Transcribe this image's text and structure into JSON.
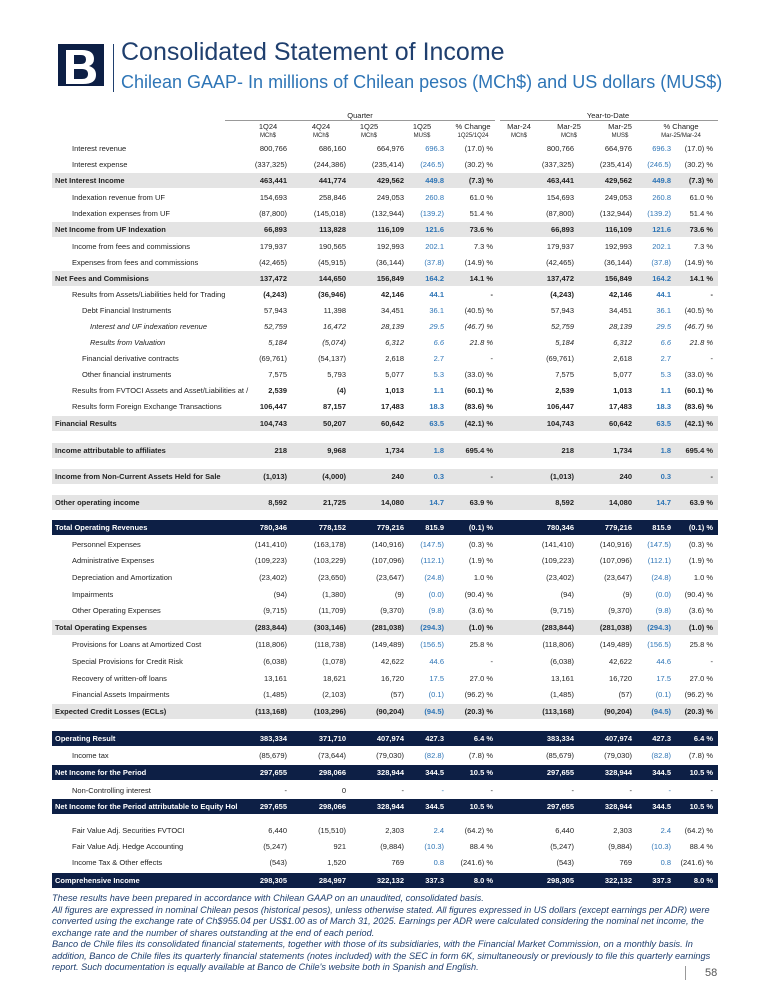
{
  "header": {
    "title": "Consolidated Statement of Income",
    "subtitle": "Chilean GAAP- In millions of Chilean pesos (MCh$) and US dollars (MUS$)"
  },
  "table": {
    "groups": [
      "Quarter",
      "Year-to-Date"
    ],
    "columns": [
      [
        "1Q24",
        "MCh$"
      ],
      [
        "4Q24",
        "MCh$"
      ],
      [
        "1Q25",
        "MCh$"
      ],
      [
        "1Q25",
        "MUS$"
      ],
      [
        "% Change",
        "1Q25/1Q24"
      ],
      [
        "Mar-24",
        "MCh$"
      ],
      [
        "Mar-25",
        "MCh$"
      ],
      [
        "Mar-25",
        "MUS$"
      ],
      [
        "% Change",
        "Mar-25/Mar-24"
      ]
    ],
    "rows": [
      [
        "Interest revenue",
        "800,766",
        "686,160",
        "664,976",
        "696.3",
        "(17.0) %",
        "800,766",
        "664,976",
        "696.3",
        "(17.0) %"
      ],
      [
        "Interest expense",
        "(337,325)",
        "(244,386)",
        "(235,414)",
        "(246.5)",
        "(30.2) %",
        "(337,325)",
        "(235,414)",
        "(246.5)",
        "(30.2) %"
      ],
      [
        "Net Interest Income",
        "463,441",
        "441,774",
        "429,562",
        "449.8",
        "(7.3) %",
        "463,441",
        "429,562",
        "449.8",
        "(7.3) %"
      ],
      [
        "Indexation revenue from UF",
        "154,693",
        "258,846",
        "249,053",
        "260.8",
        "61.0 %",
        "154,693",
        "249,053",
        "260.8",
        "61.0 %"
      ],
      [
        "Indexation expenses from UF",
        "(87,800)",
        "(145,018)",
        "(132,944)",
        "(139.2)",
        "51.4 %",
        "(87,800)",
        "(132,944)",
        "(139.2)",
        "51.4 %"
      ],
      [
        "Net Income from UF Indexation",
        "66,893",
        "113,828",
        "116,109",
        "121.6",
        "73.6 %",
        "66,893",
        "116,109",
        "121.6",
        "73.6 %"
      ],
      [
        "Income from fees and commissions",
        "179,937",
        "190,565",
        "192,993",
        "202.1",
        "7.3 %",
        "179,937",
        "192,993",
        "202.1",
        "7.3 %"
      ],
      [
        "Expenses from fees and commissions",
        "(42,465)",
        "(45,915)",
        "(36,144)",
        "(37.8)",
        "(14.9) %",
        "(42,465)",
        "(36,144)",
        "(37.8)",
        "(14.9) %"
      ],
      [
        "Net Fees and Commisions",
        "137,472",
        "144,650",
        "156,849",
        "164.2",
        "14.1 %",
        "137,472",
        "156,849",
        "164.2",
        "14.1 %"
      ],
      [
        "Results from Assets/Liabilities held for Trading",
        "(4,243)",
        "(36,946)",
        "42,146",
        "44.1",
        "-",
        "(4,243)",
        "42,146",
        "44.1",
        "-"
      ],
      [
        "Debt Financial Instruments",
        "57,943",
        "11,398",
        "34,451",
        "36.1",
        "(40.5) %",
        "57,943",
        "34,451",
        "36.1",
        "(40.5) %"
      ],
      [
        "Interest and UF indexation revenue",
        "52,759",
        "16,472",
        "28,139",
        "29.5",
        "(46.7) %",
        "52,759",
        "28,139",
        "29.5",
        "(46.7) %"
      ],
      [
        "Results from Valuation",
        "5,184",
        "(5,074)",
        "6,312",
        "6.6",
        "21.8 %",
        "5,184",
        "6,312",
        "6.6",
        "21.8 %"
      ],
      [
        "Financial derivative contracts",
        "(69,761)",
        "(54,137)",
        "2,618",
        "2.7",
        "-",
        "(69,761)",
        "2,618",
        "2.7",
        "-"
      ],
      [
        "Other financial instruments",
        "7,575",
        "5,793",
        "5,077",
        "5.3",
        "(33.0) %",
        "7,575",
        "5,077",
        "5.3",
        "(33.0) %"
      ],
      [
        "Results from FVTOCI Assets and Asset/Liabilities at /",
        "2,539",
        "(4)",
        "1,013",
        "1.1",
        "(60.1) %",
        "2,539",
        "1,013",
        "1.1",
        "(60.1) %"
      ],
      [
        "Results form Foreign Exchange Transactions",
        "106,447",
        "87,157",
        "17,483",
        "18.3",
        "(83.6) %",
        "106,447",
        "17,483",
        "18.3",
        "(83.6) %"
      ],
      [
        "Financial Results",
        "104,743",
        "50,207",
        "60,642",
        "63.5",
        "(42.1) %",
        "104,743",
        "60,642",
        "63.5",
        "(42.1) %"
      ],
      [
        "Income attributable to affiliates",
        "218",
        "9,968",
        "1,734",
        "1.8",
        "695.4 %",
        "218",
        "1,734",
        "1.8",
        "695.4 %"
      ],
      [
        "Income from Non-Current Assets Held for Sale",
        "(1,013)",
        "(4,000)",
        "240",
        "0.3",
        "-",
        "(1,013)",
        "240",
        "0.3",
        "-"
      ],
      [
        "Other operating income",
        "8,592",
        "21,725",
        "14,080",
        "14.7",
        "63.9 %",
        "8,592",
        "14,080",
        "14.7",
        "63.9 %"
      ],
      [
        "Total Operating Revenues",
        "780,346",
        "778,152",
        "779,216",
        "815.9",
        "(0.1) %",
        "780,346",
        "779,216",
        "815.9",
        "(0.1) %"
      ],
      [
        "Personnel Expenses",
        "(141,410)",
        "(163,178)",
        "(140,916)",
        "(147.5)",
        "(0.3) %",
        "(141,410)",
        "(140,916)",
        "(147.5)",
        "(0.3) %"
      ],
      [
        "Administrative Expenses",
        "(109,223)",
        "(103,229)",
        "(107,096)",
        "(112.1)",
        "(1.9) %",
        "(109,223)",
        "(107,096)",
        "(112.1)",
        "(1.9) %"
      ],
      [
        "Depreciation and Amortization",
        "(23,402)",
        "(23,650)",
        "(23,647)",
        "(24.8)",
        "1.0 %",
        "(23,402)",
        "(23,647)",
        "(24.8)",
        "1.0 %"
      ],
      [
        "Impairments",
        "(94)",
        "(1,380)",
        "(9)",
        "(0.0)",
        "(90.4) %",
        "(94)",
        "(9)",
        "(0.0)",
        "(90.4) %"
      ],
      [
        "Other Operating Expenses",
        "(9,715)",
        "(11,709)",
        "(9,370)",
        "(9.8)",
        "(3.6) %",
        "(9,715)",
        "(9,370)",
        "(9.8)",
        "(3.6) %"
      ],
      [
        "Total Operating Expenses",
        "(283,844)",
        "(303,146)",
        "(281,038)",
        "(294.3)",
        "(1.0) %",
        "(283,844)",
        "(281,038)",
        "(294.3)",
        "(1.0) %"
      ],
      [
        "Provisions for Loans at Amortized Cost",
        "(118,806)",
        "(118,738)",
        "(149,489)",
        "(156.5)",
        "25.8 %",
        "(118,806)",
        "(149,489)",
        "(156.5)",
        "25.8 %"
      ],
      [
        "Special Provisions for Credit Risk",
        "(6,038)",
        "(1,078)",
        "42,622",
        "44.6",
        "-",
        "(6,038)",
        "42,622",
        "44.6",
        "-"
      ],
      [
        "Recovery of written-off loans",
        "13,161",
        "18,621",
        "16,720",
        "17.5",
        "27.0 %",
        "13,161",
        "16,720",
        "17.5",
        "27.0 %"
      ],
      [
        "Financial Assets Impairments",
        "(1,485)",
        "(2,103)",
        "(57)",
        "(0.1)",
        "(96.2) %",
        "(1,485)",
        "(57)",
        "(0.1)",
        "(96.2) %"
      ],
      [
        "Expected Credit Losses (ECLs)",
        "(113,168)",
        "(103,296)",
        "(90,204)",
        "(94.5)",
        "(20.3) %",
        "(113,168)",
        "(90,204)",
        "(94.5)",
        "(20.3) %"
      ],
      [
        "Operating Result",
        "383,334",
        "371,710",
        "407,974",
        "427.3",
        "6.4 %",
        "383,334",
        "407,974",
        "427.3",
        "6.4 %"
      ],
      [
        "Income tax",
        "(85,679)",
        "(73,644)",
        "(79,030)",
        "(82.8)",
        "(7.8) %",
        "(85,679)",
        "(79,030)",
        "(82.8)",
        "(7.8) %"
      ],
      [
        "Net Income for the Period",
        "297,655",
        "298,066",
        "328,944",
        "344.5",
        "10.5 %",
        "297,655",
        "328,944",
        "344.5",
        "10.5 %"
      ],
      [
        "Non-Controlling interest",
        "-",
        "0",
        "-",
        "-",
        "-",
        "-",
        "-",
        "-",
        "-"
      ],
      [
        "Net Income for the Period attributable to Equity Hol",
        "297,655",
        "298,066",
        "328,944",
        "344.5",
        "10.5 %",
        "297,655",
        "328,944",
        "344.5",
        "10.5 %"
      ],
      [
        "Fair Value Adj. Securities FVTOCI",
        "6,440",
        "(15,510)",
        "2,303",
        "2.4",
        "(64.2) %",
        "6,440",
        "2,303",
        "2.4",
        "(64.2) %"
      ],
      [
        "Fair Value Adj. Hedge Accounting",
        "(5,247)",
        "921",
        "(9,884)",
        "(10.3)",
        "88.4 %",
        "(5,247)",
        "(9,884)",
        "(10.3)",
        "88.4 %"
      ],
      [
        "Income Tax & Other effects",
        "(543)",
        "1,520",
        "769",
        "0.8",
        "(241.6) %",
        "(543)",
        "769",
        "0.8",
        "(241.6) %"
      ],
      [
        "Comprehensive Income",
        "298,305",
        "284,997",
        "322,132",
        "337.3",
        "8.0 %",
        "298,305",
        "322,132",
        "337.3",
        "8.0 %"
      ]
    ]
  },
  "footnotes": [
    "These results have been prepared in accordance with Chilean GAAP on an unaudited, consolidated basis.",
    "All figures are expressed in nominal Chilean pesos (historical pesos), unless otherwise stated. All figures expressed in US dollars (except earnings per ADR) were converted using the exchange rate of Ch$955.04 per US$1.00 as of March 31, 2025. Earnings per ADR were calculated considering the nominal net income, the exchange rate and the number of shares outstanding at the end of each period.",
    "Banco de Chile files its consolidated financial statements, together with those of its subsidiaries, with the Financial Market Commission, on a monthly basis. In addition, Banco de Chile files its quarterly financial statements (notes included) with the SEC in form 6K, simultaneously or previously to file this quarterly earnings report. Such documentation is equally available at Banco de Chile's website both in Spanish and English."
  ],
  "page_number": "58"
}
